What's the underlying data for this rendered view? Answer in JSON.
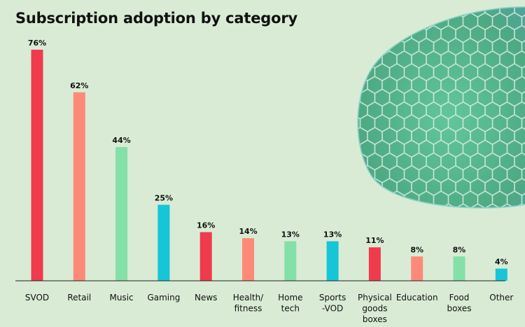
{
  "chart_data": {
    "type": "bar",
    "title": "Subscription adoption by category",
    "xlabel": "",
    "ylabel": "",
    "ylim": [
      0,
      80
    ],
    "grid": false,
    "categories": [
      [
        "SVOD"
      ],
      [
        "Retail"
      ],
      [
        "Music"
      ],
      [
        "Gaming"
      ],
      [
        "News"
      ],
      [
        "Health/",
        "fitness"
      ],
      [
        "Home",
        "tech"
      ],
      [
        "Sports",
        "-VOD"
      ],
      [
        "Physical",
        "goods",
        "boxes"
      ],
      [
        "Education"
      ],
      [
        "Food",
        "boxes"
      ],
      [
        "Other"
      ]
    ],
    "values": [
      76,
      62,
      44,
      25,
      16,
      14,
      13,
      13,
      11,
      8,
      8,
      4
    ],
    "value_labels": [
      "76%",
      "62%",
      "44%",
      "25%",
      "16%",
      "14%",
      "13%",
      "13%",
      "11%",
      "8%",
      "8%",
      "4%"
    ],
    "bar_colors": [
      "#ef3b4c",
      "#fd8a78",
      "#82e0a8",
      "#16c5d6",
      "#ef3b4c",
      "#fd8a78",
      "#82e0a8",
      "#16c5d6",
      "#ef3b4c",
      "#fd8a78",
      "#82e0a8",
      "#16c5d6"
    ]
  },
  "colors": {
    "background": "#d9ebd5",
    "axis": "#222222",
    "dome_fill": "#4fb88c",
    "dome_mesh": "#d9efe6"
  },
  "decoration": {
    "icon": "hexagon-dome-icon"
  }
}
